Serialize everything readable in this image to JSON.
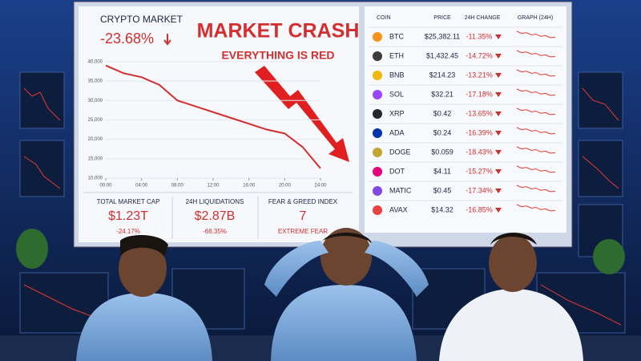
{
  "screen": {
    "title": "CRYPTO MARKET",
    "change": "-23.68%",
    "headline": "MARKET CRASH",
    "subheadline": "EVERYTHING IS RED",
    "stats": [
      {
        "label": "TOTAL MARKET CAP",
        "value": "$1.23T",
        "change": "-24.17%"
      },
      {
        "label": "24H LIQUIDATIONS",
        "value": "$2.87B",
        "change": "-68.35%"
      },
      {
        "label": "FEAR & GREED INDEX",
        "value": "7",
        "change": "EXTREME FEAR"
      }
    ],
    "table": {
      "header": [
        "COIN",
        "PRICE",
        "24H CHANGE",
        "GRAPH (24H)"
      ],
      "rows": [
        [
          "BTC",
          "$25,382.11",
          "-11.35%"
        ],
        [
          "ETH",
          "$1,432.45",
          "-14.72%"
        ],
        [
          "BNB",
          "$214.23",
          "-13.21%"
        ],
        [
          "SOL",
          "$32.21",
          "-17.18%"
        ],
        [
          "XRP",
          "$0.42",
          "-13.65%"
        ],
        [
          "ADA",
          "$0.24",
          "-16.39%"
        ],
        [
          "DOGE",
          "$0.059",
          "-18.43%"
        ],
        [
          "DOT",
          "$4.11",
          "-15.27%"
        ],
        [
          "MATIC",
          "$0.45",
          "-17.34%"
        ],
        [
          "AVAX",
          "$14.32",
          "-16.85%"
        ]
      ]
    }
  },
  "chart_data": {
    "type": "line",
    "x": [
      0,
      2,
      4,
      6,
      8,
      10,
      12,
      14,
      16,
      18,
      20,
      22,
      24
    ],
    "values": [
      39000,
      37000,
      36000,
      34000,
      30000,
      28500,
      27000,
      25500,
      24000,
      22500,
      21500,
      18000,
      12500
    ],
    "color": "#d32f2f",
    "xlim": [
      0,
      24
    ],
    "ylim": [
      10000,
      41000
    ],
    "xticks": [
      {
        "value": 0,
        "label": "00:00"
      },
      {
        "value": 4,
        "label": "04:00"
      },
      {
        "value": 8,
        "label": "08:00"
      },
      {
        "value": 12,
        "label": "12:00"
      },
      {
        "value": 16,
        "label": "16:00"
      },
      {
        "value": 20,
        "label": "20:00"
      },
      {
        "value": 24,
        "label": "24:00"
      }
    ],
    "yticks": [
      {
        "value": 10000,
        "label": "10,000"
      },
      {
        "value": 15000,
        "label": "15,000"
      },
      {
        "value": 20000,
        "label": "20,000"
      },
      {
        "value": 25000,
        "label": "25,000"
      },
      {
        "value": 30000,
        "label": "30,000"
      },
      {
        "value": 35000,
        "label": "35,000"
      },
      {
        "value": 40000,
        "label": "40,000"
      }
    ]
  }
}
